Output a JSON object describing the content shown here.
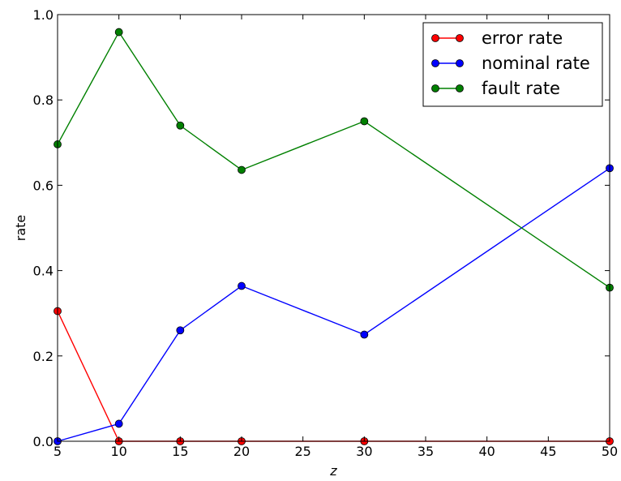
{
  "chart_data": {
    "type": "line",
    "title": "",
    "xlabel": "z",
    "ylabel": "rate",
    "xlim": [
      5,
      50
    ],
    "ylim": [
      0.0,
      1.0
    ],
    "x": [
      5,
      10,
      15,
      20,
      30,
      50
    ],
    "xticks": [
      "5",
      "10",
      "15",
      "20",
      "25",
      "30",
      "35",
      "40",
      "45",
      "50"
    ],
    "yticks": [
      "0.0",
      "0.2",
      "0.4",
      "0.6",
      "0.8",
      "1.0"
    ],
    "grid": false,
    "legend_position": "top-right",
    "series": [
      {
        "name": "error rate",
        "color": "#ff0000",
        "values": [
          0.305,
          0.0,
          0.0,
          0.0,
          0.0,
          0.0
        ]
      },
      {
        "name": "nominal rate",
        "color": "#0000ff",
        "values": [
          0.0,
          0.041,
          0.26,
          0.364,
          0.25,
          0.64
        ]
      },
      {
        "name": "fault rate",
        "color": "#008000",
        "values": [
          0.696,
          0.959,
          0.74,
          0.636,
          0.75,
          0.36
        ]
      }
    ]
  }
}
